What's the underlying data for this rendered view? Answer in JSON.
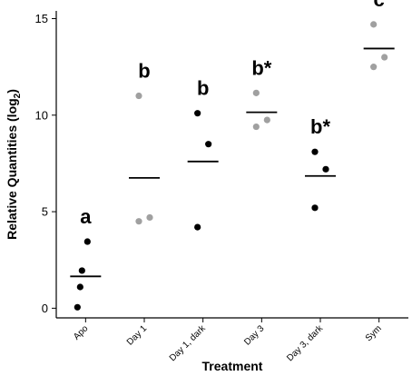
{
  "chart_data": {
    "type": "scatter",
    "xlabel": "Treatment",
    "ylabel_main": "Relative Quantities (log",
    "ylabel_sub": "2",
    "ylabel_close": ")",
    "ylim": [
      -0.5,
      15.4
    ],
    "yticks": [
      0,
      5,
      10,
      15
    ],
    "grid": false,
    "categories": [
      "Apo",
      "Day 1",
      "Day 1, dark",
      "Day 3",
      "Day 3, dark",
      "Sym"
    ],
    "groups": [
      {
        "category": "Apo",
        "label": "a",
        "color": "#000000",
        "points": [
          3.45,
          1.95,
          1.1,
          0.05
        ],
        "mean": 1.65
      },
      {
        "category": "Day 1",
        "label": "b",
        "color": "#a0a0a0",
        "points": [
          11.0,
          4.7,
          4.5
        ],
        "mean": 6.75
      },
      {
        "category": "Day 1, dark",
        "label": "b",
        "color": "#000000",
        "points": [
          10.1,
          8.5,
          4.2
        ],
        "mean": 7.6
      },
      {
        "category": "Day 3",
        "label": "b*",
        "color": "#a0a0a0",
        "points": [
          11.15,
          9.75,
          9.4
        ],
        "mean": 10.15
      },
      {
        "category": "Day 3, dark",
        "label": "b*",
        "color": "#000000",
        "points": [
          8.1,
          7.2,
          5.2
        ],
        "mean": 6.85
      },
      {
        "category": "Sym",
        "label": "c",
        "color": "#a0a0a0",
        "points": [
          14.7,
          13.0,
          12.5
        ],
        "mean": 13.45
      }
    ]
  }
}
